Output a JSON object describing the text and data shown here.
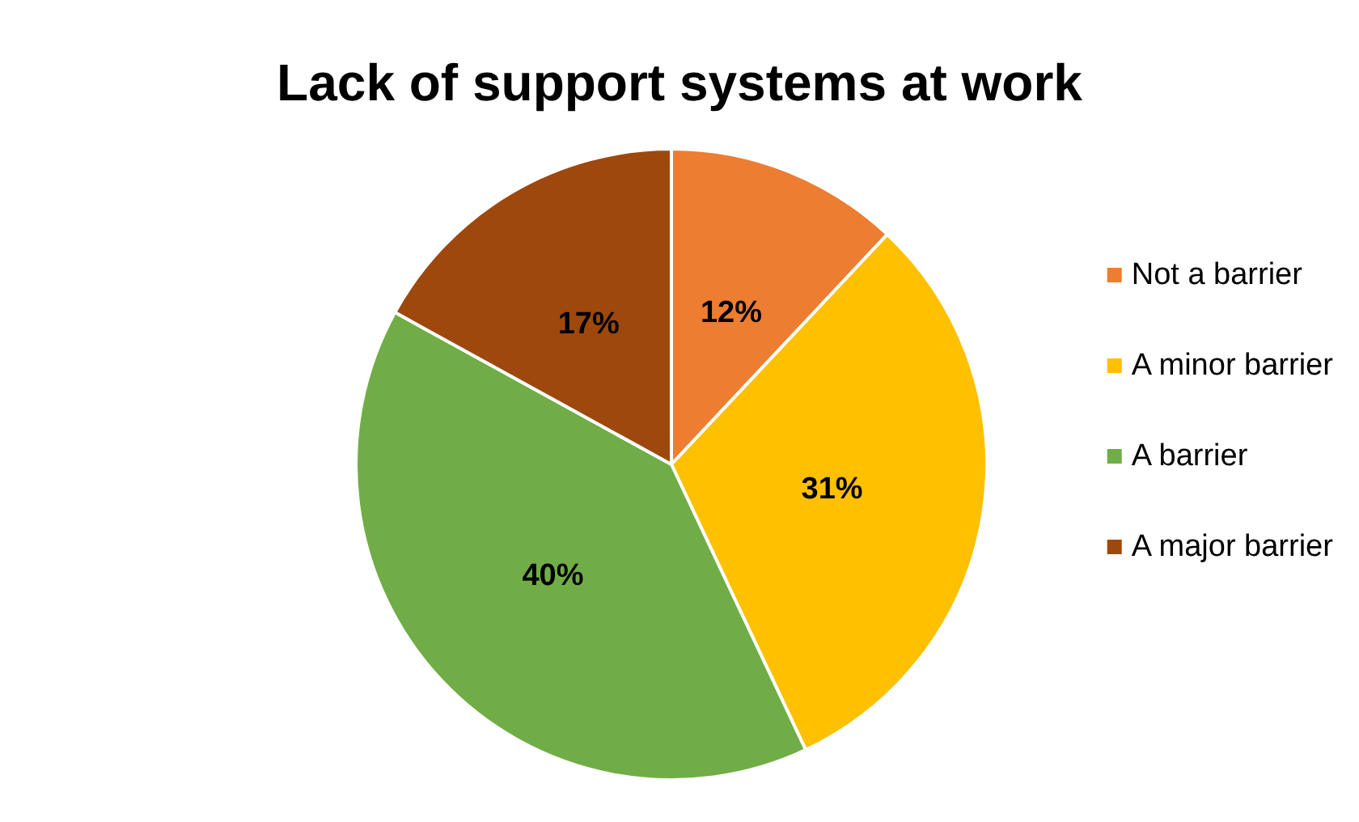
{
  "chart_data": {
    "type": "pie",
    "title": "Lack of support systems at work",
    "categories": [
      "Not a barrier",
      "A minor barrier",
      "A barrier",
      "A major barrier"
    ],
    "values": [
      12,
      31,
      40,
      17
    ],
    "colors": [
      "#ed7d31",
      "#ffc000",
      "#70ad47",
      "#9e480e"
    ],
    "value_labels": [
      "12%",
      "31%",
      "40%",
      "17%"
    ],
    "legend": "right"
  }
}
